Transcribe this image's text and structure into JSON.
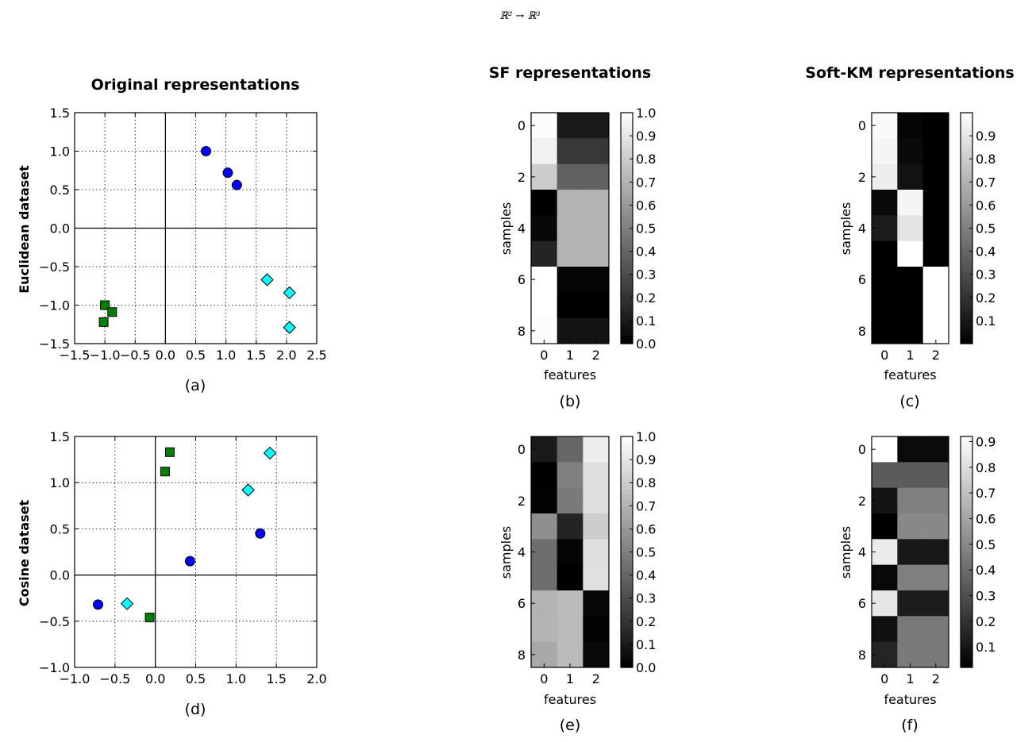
{
  "suptitle": "ℝ² → ℝ³",
  "column_titles": [
    "Original representations",
    "SF representations",
    "Soft-KM representations"
  ],
  "row_labels": [
    "Euclidean dataset",
    "Cosine dataset"
  ],
  "colors": {
    "circle": "#0000ff",
    "square": "#008000",
    "diamond": "#00ffff",
    "edge": "#000000"
  },
  "chart_data": [
    {
      "id": "a",
      "type": "scatter",
      "sublabel": "(a)",
      "xlim": [
        -1.5,
        2.5
      ],
      "ylim": [
        -1.5,
        1.5
      ],
      "xticks": [
        "−1.5",
        "−1.0",
        "−0.5",
        "0.0",
        "0.5",
        "1.0",
        "1.5",
        "2.0",
        "2.5"
      ],
      "yticks": [
        "1.5",
        "1.0",
        "0.5",
        "0.0",
        "−0.5",
        "−1.0",
        "−1.5"
      ],
      "grid": true,
      "series": [
        {
          "name": "circles",
          "marker": "circle",
          "x": [
            0.67,
            1.03,
            1.18
          ],
          "y": [
            1.0,
            0.72,
            0.56
          ]
        },
        {
          "name": "squares",
          "marker": "square",
          "x": [
            -1.0,
            -0.88,
            -1.02
          ],
          "y": [
            -1.0,
            -1.09,
            -1.22
          ]
        },
        {
          "name": "diamonds",
          "marker": "diamond",
          "x": [
            1.68,
            2.05,
            2.05
          ],
          "y": [
            -0.67,
            -0.84,
            -1.29
          ]
        }
      ]
    },
    {
      "id": "b",
      "type": "heatmap",
      "sublabel": "(b)",
      "xlabel": "features",
      "ylabel": "samples",
      "xticks": [
        "0",
        "1",
        "2"
      ],
      "yticks": [
        "0",
        "2",
        "4",
        "6",
        "8"
      ],
      "colorbar": {
        "min": 0.0,
        "max": 1.0,
        "ticks": [
          0.0,
          0.1,
          0.2,
          0.3,
          0.4,
          0.5,
          0.6,
          0.7,
          0.8,
          0.9,
          1.0
        ],
        "tick_labels": [
          "0.0",
          "0.1",
          "0.2",
          "0.3",
          "0.4",
          "0.5",
          "0.6",
          "0.7",
          "0.8",
          "0.9",
          "1.0"
        ]
      },
      "values": [
        [
          0.99,
          0.1,
          0.1
        ],
        [
          0.94,
          0.22,
          0.22
        ],
        [
          0.8,
          0.38,
          0.38
        ],
        [
          0.0,
          0.7,
          0.7
        ],
        [
          0.03,
          0.7,
          0.7
        ],
        [
          0.14,
          0.7,
          0.7
        ],
        [
          1.0,
          0.02,
          0.02
        ],
        [
          1.0,
          0.0,
          0.0
        ],
        [
          0.99,
          0.08,
          0.08
        ]
      ]
    },
    {
      "id": "c",
      "type": "heatmap",
      "sublabel": "(c)",
      "xlabel": "features",
      "ylabel": "samples",
      "xticks": [
        "0",
        "1",
        "2"
      ],
      "yticks": [
        "0",
        "2",
        "4",
        "6",
        "8"
      ],
      "colorbar": {
        "min": 0.0,
        "max": 1.0,
        "ticks": [
          0.1,
          0.2,
          0.3,
          0.4,
          0.5,
          0.6,
          0.7,
          0.8,
          0.9
        ],
        "tick_labels": [
          "0.1",
          "0.2",
          "0.3",
          "0.4",
          "0.5",
          "0.6",
          "0.7",
          "0.8",
          "0.9"
        ]
      },
      "values": [
        [
          0.98,
          0.02,
          0.0
        ],
        [
          0.96,
          0.04,
          0.0
        ],
        [
          0.93,
          0.07,
          0.0
        ],
        [
          0.04,
          0.96,
          0.0
        ],
        [
          0.11,
          0.89,
          0.0
        ],
        [
          0.0,
          1.0,
          0.0
        ],
        [
          0.0,
          0.0,
          1.0
        ],
        [
          0.0,
          0.0,
          1.0
        ],
        [
          0.0,
          0.0,
          1.0
        ]
      ]
    },
    {
      "id": "d",
      "type": "scatter",
      "sublabel": "(d)",
      "xlim": [
        -1.0,
        2.0
      ],
      "ylim": [
        -1.0,
        1.5
      ],
      "xticks": [
        "−1.0",
        "−0.5",
        "0.0",
        "0.5",
        "1.0",
        "1.5",
        "2.0"
      ],
      "yticks": [
        "1.5",
        "1.0",
        "0.5",
        "0.0",
        "−0.5",
        "−1.0"
      ],
      "grid": true,
      "series": [
        {
          "name": "circles",
          "marker": "circle",
          "x": [
            -0.71,
            0.43,
            1.3
          ],
          "y": [
            -0.32,
            0.15,
            0.45
          ]
        },
        {
          "name": "squares",
          "marker": "square",
          "x": [
            -0.07,
            0.12,
            0.18
          ],
          "y": [
            -0.46,
            1.12,
            1.33
          ]
        },
        {
          "name": "diamonds",
          "marker": "diamond",
          "x": [
            -0.35,
            1.15,
            1.42
          ],
          "y": [
            -0.31,
            0.92,
            1.32
          ]
        }
      ]
    },
    {
      "id": "e",
      "type": "heatmap",
      "sublabel": "(e)",
      "xlabel": "features",
      "ylabel": "samples",
      "xticks": [
        "0",
        "1",
        "2"
      ],
      "yticks": [
        "0",
        "2",
        "4",
        "6",
        "8"
      ],
      "colorbar": {
        "min": 0.0,
        "max": 1.0,
        "ticks": [
          0.0,
          0.1,
          0.2,
          0.3,
          0.4,
          0.5,
          0.6,
          0.7,
          0.8,
          0.9,
          1.0
        ],
        "tick_labels": [
          "0.0",
          "0.1",
          "0.2",
          "0.3",
          "0.4",
          "0.5",
          "0.6",
          "0.7",
          "0.8",
          "0.9",
          "1.0"
        ]
      },
      "values": [
        [
          0.1,
          0.4,
          0.93
        ],
        [
          0.0,
          0.5,
          0.87
        ],
        [
          0.01,
          0.48,
          0.87
        ],
        [
          0.56,
          0.14,
          0.8
        ],
        [
          0.43,
          0.02,
          0.87
        ],
        [
          0.43,
          0.0,
          0.88
        ],
        [
          0.7,
          0.73,
          0.03
        ],
        [
          0.71,
          0.73,
          0.01
        ],
        [
          0.66,
          0.73,
          0.04
        ]
      ]
    },
    {
      "id": "f",
      "type": "heatmap",
      "sublabel": "(f)",
      "xlabel": "features",
      "ylabel": "samples",
      "xticks": [
        "0",
        "1",
        "2"
      ],
      "yticks": [
        "0",
        "2",
        "4",
        "6",
        "8"
      ],
      "colorbar": {
        "min": 0.02,
        "max": 0.92,
        "ticks": [
          0.1,
          0.2,
          0.3,
          0.4,
          0.5,
          0.6,
          0.7,
          0.8,
          0.9
        ],
        "tick_labels": [
          "0.1",
          "0.2",
          "0.3",
          "0.4",
          "0.5",
          "0.6",
          "0.7",
          "0.8",
          "0.9"
        ]
      },
      "values": [
        [
          0.92,
          0.06,
          0.06
        ],
        [
          0.34,
          0.34,
          0.34
        ],
        [
          0.09,
          0.47,
          0.47
        ],
        [
          0.02,
          0.5,
          0.5
        ],
        [
          0.85,
          0.1,
          0.1
        ],
        [
          0.05,
          0.47,
          0.47
        ],
        [
          0.83,
          0.12,
          0.12
        ],
        [
          0.08,
          0.45,
          0.45
        ],
        [
          0.15,
          0.45,
          0.45
        ]
      ]
    }
  ]
}
